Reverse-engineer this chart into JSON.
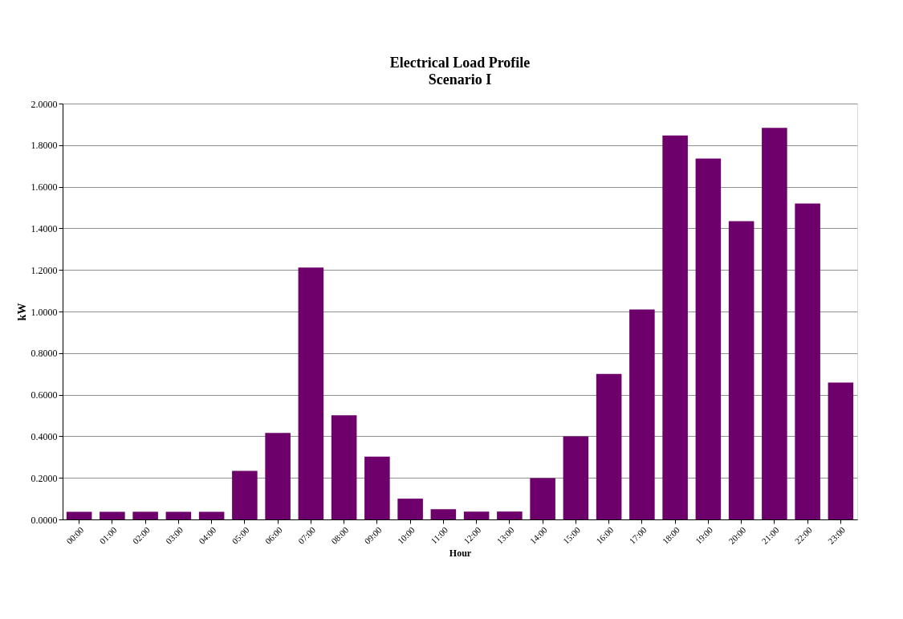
{
  "chart_data": {
    "type": "bar",
    "title": "Electrical Load Profile",
    "subtitle": "Scenario I",
    "xlabel": "Hour",
    "ylabel": "kW",
    "categories": [
      "00:00",
      "01:00",
      "02:00",
      "03:00",
      "04:00",
      "05:00",
      "06:00",
      "07:00",
      "08:00",
      "09:00",
      "10:00",
      "11:00",
      "12:00",
      "13:00",
      "14:00",
      "15:00",
      "16:00",
      "17:00",
      "18:00",
      "19:00",
      "20:00",
      "21:00",
      "22:00",
      "23:00"
    ],
    "values": [
      0.037,
      0.037,
      0.037,
      0.037,
      0.037,
      0.234,
      0.416,
      1.211,
      0.501,
      0.302,
      0.1,
      0.049,
      0.038,
      0.038,
      0.199,
      0.4,
      0.7,
      1.01,
      1.847,
      1.736,
      1.434,
      1.883,
      1.519,
      0.658
    ],
    "color": "#6e006c",
    "ylim": [
      0,
      2
    ],
    "yticks": [
      {
        "value": 0,
        "label": "0.0000"
      },
      {
        "value": 0.2,
        "label": "0.2000"
      },
      {
        "value": 0.4,
        "label": "0.4000"
      },
      {
        "value": 0.6,
        "label": "0.6000"
      },
      {
        "value": 0.8,
        "label": "0.8000"
      },
      {
        "value": 1,
        "label": "1.0000"
      },
      {
        "value": 1.2,
        "label": "1.2000"
      },
      {
        "value": 1.4,
        "label": "1.4000"
      },
      {
        "value": 1.6,
        "label": "1.6000"
      },
      {
        "value": 1.8,
        "label": "1.8000"
      },
      {
        "value": 2,
        "label": "2.0000"
      }
    ],
    "grid": "y"
  }
}
